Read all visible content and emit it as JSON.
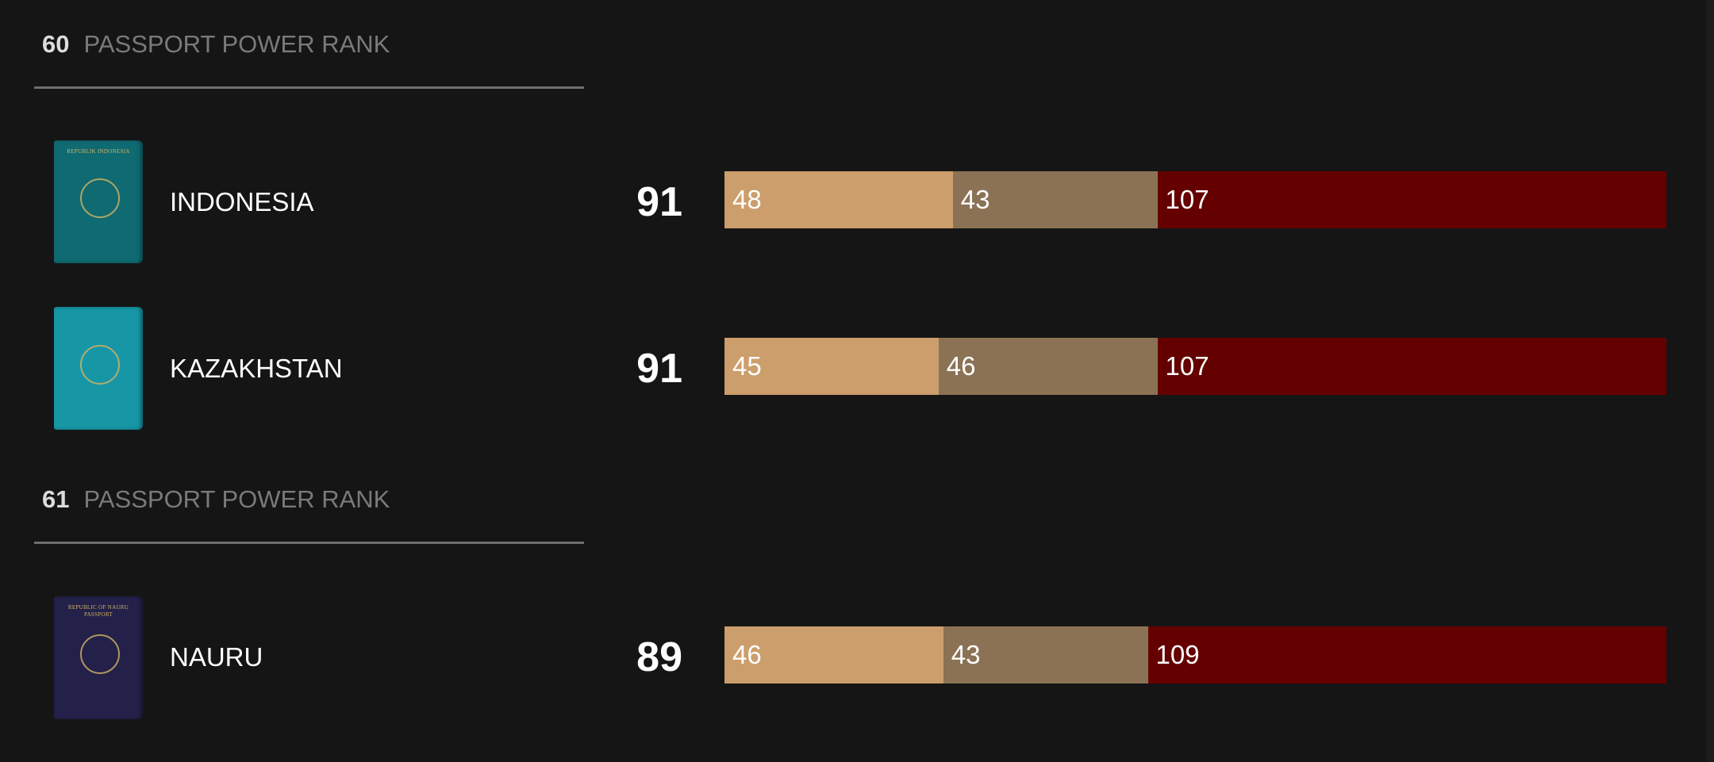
{
  "groups": [
    {
      "rank": "60",
      "rank_label": "PASSPORT POWER RANK",
      "countries": [
        {
          "name": "INDONESIA",
          "score": "91",
          "passport_color": "#0f6a72",
          "passport_text": "REPUBLIK INDONESIA",
          "segments": [
            48,
            43,
            107
          ]
        },
        {
          "name": "KAZAKHSTAN",
          "score": "91",
          "passport_color": "#1796a6",
          "segments": [
            45,
            46,
            107
          ]
        }
      ]
    },
    {
      "rank": "61",
      "rank_label": "PASSPORT POWER RANK",
      "countries": [
        {
          "name": "NAURU",
          "score": "89",
          "passport_color": "#23214a",
          "passport_text": "REPUBLIC OF NAURU PASSPORT",
          "segments": [
            46,
            43,
            109
          ]
        }
      ]
    }
  ],
  "colors": {
    "background": "#151515",
    "segment_1": "#cc9e6b",
    "segment_2": "#8b7255",
    "segment_3": "#650000"
  },
  "chart_data": {
    "type": "bar",
    "stacked": true,
    "orientation": "horizontal",
    "categories": [
      "INDONESIA",
      "KAZAKHSTAN",
      "NAURU"
    ],
    "series": [
      {
        "values": [
          48,
          45,
          46
        ],
        "color": "#cc9e6b"
      },
      {
        "values": [
          43,
          46,
          43
        ],
        "color": "#8b7255"
      },
      {
        "values": [
          107,
          107,
          109
        ],
        "color": "#650000"
      }
    ],
    "totals_shown": [
      91,
      91,
      89
    ]
  }
}
